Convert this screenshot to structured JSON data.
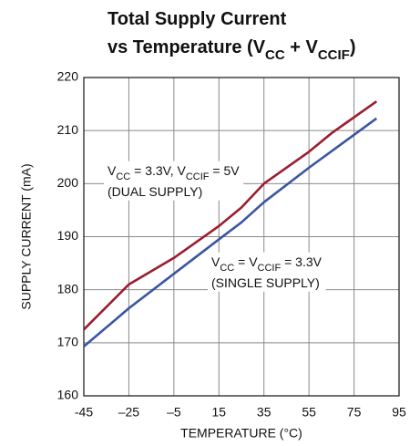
{
  "chart_data": {
    "type": "line",
    "title": [
      [
        {
          "text": "Total Supply Current"
        }
      ],
      [
        {
          "text": "vs Temperature (V"
        },
        {
          "text": "CC",
          "sub": true
        },
        {
          "text": " + V"
        },
        {
          "text": "CCIF",
          "sub": true
        },
        {
          "text": ")"
        }
      ]
    ],
    "x_label": "TEMPERATURE (°C)",
    "y_label": "SUPPLY CURRENT (mA)",
    "xlim": [
      -45,
      95
    ],
    "xticks": [
      -45,
      {
        "value": -25,
        "label": "–25"
      },
      {
        "value": -5,
        "label": "–5"
      },
      15,
      35,
      55,
      75,
      95
    ],
    "ylim": [
      160,
      220
    ],
    "yticks": [
      160,
      170,
      180,
      190,
      200,
      210,
      220
    ],
    "grid": true,
    "series": [
      {
        "color": "#9b1c2e",
        "x": [
          -45,
          -25,
          -5,
          15,
          25,
          35,
          55,
          65,
          85
        ],
        "values": [
          172.5,
          181,
          186,
          192,
          195.5,
          200,
          206,
          209.5,
          215.5
        ]
      },
      {
        "color": "#3a56a0",
        "x": [
          -45,
          -25,
          -5,
          15,
          25,
          35,
          55,
          85
        ],
        "values": [
          169.3,
          176.5,
          183,
          189.5,
          192.7,
          196.5,
          203,
          212.3
        ]
      }
    ],
    "annotations": [
      {
        "lines": [
          [
            {
              "text": "V"
            },
            {
              "text": "CC",
              "sub": true
            },
            {
              "text": " = 3.3V, V"
            },
            {
              "text": "CCIF",
              "sub": true
            },
            {
              "text": " = 5V"
            }
          ],
          [
            {
              "text": "(DUAL SUPPLY)"
            }
          ]
        ]
      },
      {
        "lines": [
          [
            {
              "text": "V"
            },
            {
              "text": "CC",
              "sub": true
            },
            {
              "text": " = V"
            },
            {
              "text": "CCIF",
              "sub": true
            },
            {
              "text": " = 3.3V"
            }
          ],
          [
            {
              "text": "(SINGLE SUPPLY)"
            }
          ]
        ]
      }
    ]
  }
}
